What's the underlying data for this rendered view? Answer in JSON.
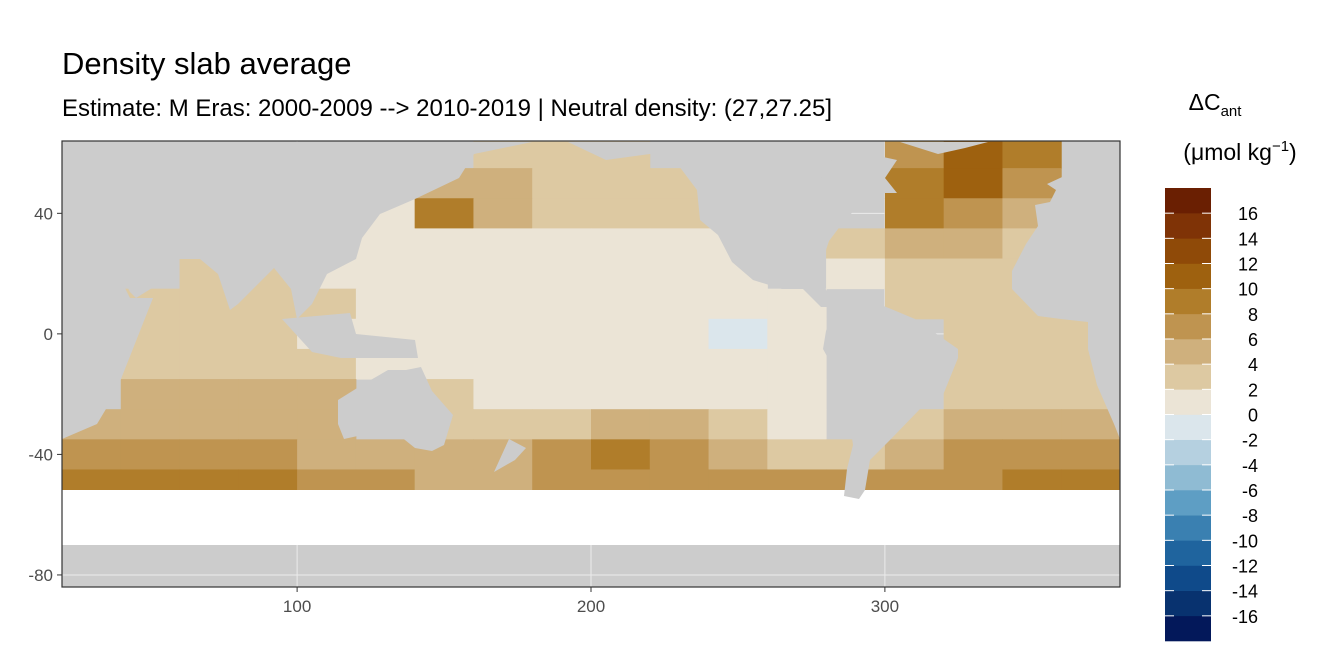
{
  "chart_data": {
    "type": "raster",
    "title": "Density slab average",
    "subtitle": "Estimate: M Eras: 2000-2009 --> 2010-2019 | Neutral density: (27,27.25]",
    "legend_title": {
      "main": "ΔC",
      "sub": "ant",
      "unit": "(μmol kg",
      "exponent": "−1",
      "close": ")"
    },
    "xlim": [
      20,
      380
    ],
    "ylim": [
      -84,
      64
    ],
    "xticks": [
      100,
      200,
      300
    ],
    "yticks": [
      40,
      0,
      -40,
      -80
    ],
    "grid": true,
    "cell_width": 20,
    "cell_height": 10,
    "lon": [
      30,
      50,
      70,
      90,
      110,
      130,
      150,
      170,
      190,
      210,
      230,
      250,
      270,
      290,
      310,
      330,
      350,
      370
    ],
    "lat": [
      60,
      50,
      40,
      30,
      20,
      10,
      0,
      -10,
      -20,
      -30,
      -40,
      -50
    ],
    "values": [
      [
        null,
        null,
        null,
        null,
        null,
        null,
        null,
        3,
        3,
        3,
        null,
        null,
        null,
        null,
        7,
        10,
        9,
        null
      ],
      [
        null,
        null,
        null,
        null,
        null,
        null,
        5,
        5,
        3,
        3,
        3,
        null,
        null,
        null,
        9,
        10,
        7,
        null
      ],
      [
        null,
        null,
        null,
        null,
        null,
        1,
        9,
        5,
        3,
        3,
        3,
        3,
        null,
        null,
        9,
        7,
        5,
        null
      ],
      [
        null,
        null,
        null,
        null,
        null,
        1,
        1,
        1,
        1,
        1,
        1,
        1,
        null,
        3,
        5,
        5,
        3,
        null
      ],
      [
        null,
        null,
        3,
        3,
        1,
        1,
        1,
        1,
        1,
        1,
        1,
        1,
        null,
        1,
        3,
        3,
        3,
        null
      ],
      [
        null,
        3,
        3,
        3,
        3,
        1,
        1,
        1,
        1,
        1,
        1,
        1,
        1,
        null,
        3,
        3,
        3,
        null
      ],
      [
        null,
        3,
        3,
        3,
        1,
        1,
        1,
        1,
        1,
        1,
        1,
        -1,
        1,
        null,
        null,
        3,
        3,
        3
      ],
      [
        null,
        3,
        3,
        3,
        3,
        1,
        1,
        1,
        1,
        1,
        1,
        1,
        1,
        null,
        1,
        3,
        3,
        3
      ],
      [
        null,
        5,
        5,
        5,
        5,
        null,
        3,
        1,
        1,
        1,
        1,
        1,
        1,
        null,
        null,
        3,
        3,
        3
      ],
      [
        5,
        5,
        5,
        5,
        5,
        null,
        3,
        3,
        3,
        5,
        5,
        3,
        1,
        null,
        3,
        5,
        5,
        5
      ],
      [
        7,
        7,
        7,
        7,
        5,
        5,
        5,
        5,
        7,
        9,
        7,
        5,
        3,
        3,
        5,
        7,
        7,
        7
      ],
      [
        9,
        9,
        9,
        9,
        7,
        7,
        5,
        5,
        7,
        7,
        7,
        7,
        7,
        7,
        7,
        7,
        9,
        9
      ]
    ],
    "legend_limits": [
      -18,
      18
    ],
    "legend_ticks": [
      -16,
      -14,
      -12,
      -10,
      -8,
      -6,
      -4,
      -2,
      0,
      2,
      4,
      6,
      8,
      10,
      12,
      14,
      16
    ],
    "colors": [
      "#03185a",
      "#08326f",
      "#0f4a8a",
      "#1f649e",
      "#3a80b1",
      "#5e9ec4",
      "#8fbbd3",
      "#b5d0e0",
      "#dbe6ec",
      "#ebe4d6",
      "#ddc9a2",
      "#cfb07d",
      "#bf9450",
      "#b07d2a",
      "#9e610f",
      "#8f4a08",
      "#7f3306",
      "#6a1f02"
    ]
  }
}
